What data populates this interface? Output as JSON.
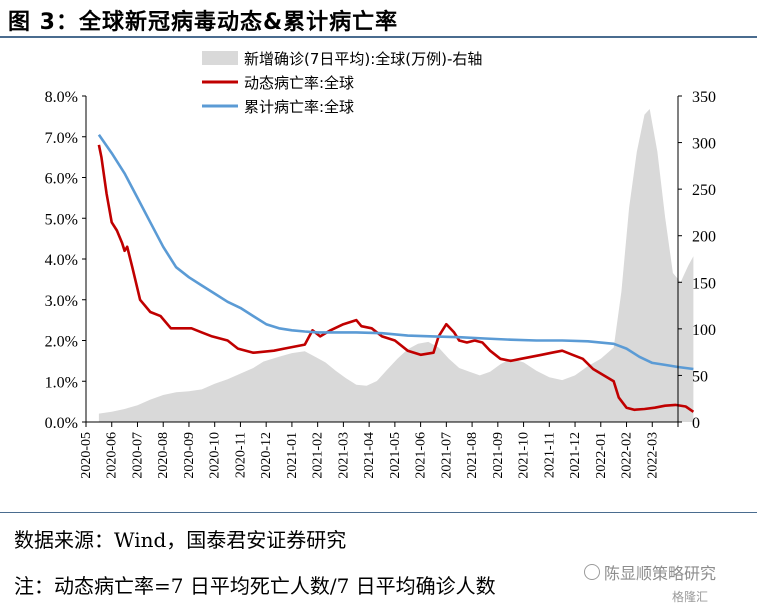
{
  "header": {
    "title": "图 3：全球新冠病毒动态&累计病亡率"
  },
  "chart_data": {
    "type": "line",
    "x_categories": [
      "2020-05",
      "2020-06",
      "2020-07",
      "2020-08",
      "2020-09",
      "2020-10",
      "2020-11",
      "2020-12",
      "2021-01",
      "2021-02",
      "2021-03",
      "2021-04",
      "2021-05",
      "2021-06",
      "2021-07",
      "2021-08",
      "2021-09",
      "2021-10",
      "2021-11",
      "2021-12",
      "2022-01",
      "2022-02",
      "2022-03"
    ],
    "y_left": {
      "min": 0,
      "max": 8,
      "ticks": [
        "0.0%",
        "1.0%",
        "2.0%",
        "3.0%",
        "4.0%",
        "5.0%",
        "6.0%",
        "7.0%",
        "8.0%"
      ]
    },
    "y_right": {
      "min": 0,
      "max": 350,
      "ticks": [
        "0",
        "50",
        "100",
        "150",
        "200",
        "250",
        "300",
        "350"
      ]
    },
    "legend_position": "top",
    "series": [
      {
        "name": "新增确诊(7日平均):全球(万例)-右轴",
        "kind": "area",
        "axis": "right",
        "color": "#d9d9d9",
        "points": [
          [
            0,
            9
          ],
          [
            0.5,
            11
          ],
          [
            1,
            14
          ],
          [
            1.5,
            18
          ],
          [
            2,
            24
          ],
          [
            2.5,
            29
          ],
          [
            3,
            32
          ],
          [
            3.5,
            33
          ],
          [
            4,
            35
          ],
          [
            4.5,
            41
          ],
          [
            5,
            46
          ],
          [
            5.5,
            52
          ],
          [
            6,
            58
          ],
          [
            6.4,
            65
          ],
          [
            7,
            70
          ],
          [
            7.5,
            74
          ],
          [
            8,
            76
          ],
          [
            8.4,
            70
          ],
          [
            8.8,
            64
          ],
          [
            9.2,
            55
          ],
          [
            9.6,
            47
          ],
          [
            10,
            40
          ],
          [
            10.4,
            39
          ],
          [
            10.8,
            44
          ],
          [
            11.2,
            56
          ],
          [
            11.6,
            68
          ],
          [
            12,
            78
          ],
          [
            12.4,
            84
          ],
          [
            12.8,
            86
          ],
          [
            13.2,
            80
          ],
          [
            13.6,
            68
          ],
          [
            14,
            58
          ],
          [
            14.4,
            54
          ],
          [
            14.8,
            50
          ],
          [
            15.2,
            54
          ],
          [
            15.6,
            62
          ],
          [
            16,
            68
          ],
          [
            16.5,
            64
          ],
          [
            17,
            55
          ],
          [
            17.5,
            48
          ],
          [
            18,
            45
          ],
          [
            18.5,
            50
          ],
          [
            19,
            60
          ],
          [
            19.5,
            68
          ],
          [
            20,
            80
          ],
          [
            20.3,
            140
          ],
          [
            20.6,
            230
          ],
          [
            20.9,
            290
          ],
          [
            21.2,
            330
          ],
          [
            21.4,
            336
          ],
          [
            21.7,
            290
          ],
          [
            22,
            220
          ],
          [
            22.3,
            160
          ],
          [
            22.6,
            150
          ],
          [
            22.9,
            168
          ],
          [
            23.1,
            178
          ]
        ]
      },
      {
        "name": "动态病亡率:全球",
        "kind": "line",
        "axis": "left",
        "color": "#c00000",
        "points": [
          [
            0,
            6.8
          ],
          [
            0.1,
            6.5
          ],
          [
            0.3,
            5.6
          ],
          [
            0.5,
            4.9
          ],
          [
            0.7,
            4.7
          ],
          [
            0.9,
            4.4
          ],
          [
            1,
            4.2
          ],
          [
            1.1,
            4.3
          ],
          [
            1.3,
            3.8
          ],
          [
            1.6,
            3.0
          ],
          [
            2,
            2.7
          ],
          [
            2.4,
            2.6
          ],
          [
            2.8,
            2.3
          ],
          [
            3.2,
            2.3
          ],
          [
            3.6,
            2.3
          ],
          [
            4,
            2.2
          ],
          [
            4.4,
            2.1
          ],
          [
            5,
            2.0
          ],
          [
            5.4,
            1.8
          ],
          [
            6,
            1.7
          ],
          [
            6.8,
            1.75
          ],
          [
            7.2,
            1.8
          ],
          [
            7.6,
            1.85
          ],
          [
            8,
            1.9
          ],
          [
            8.3,
            2.25
          ],
          [
            8.6,
            2.1
          ],
          [
            9,
            2.25
          ],
          [
            9.5,
            2.4
          ],
          [
            10,
            2.5
          ],
          [
            10.2,
            2.35
          ],
          [
            10.6,
            2.3
          ],
          [
            11,
            2.1
          ],
          [
            11.5,
            2.0
          ],
          [
            12,
            1.75
          ],
          [
            12.5,
            1.65
          ],
          [
            13,
            1.7
          ],
          [
            13.2,
            2.1
          ],
          [
            13.5,
            2.4
          ],
          [
            13.8,
            2.2
          ],
          [
            14,
            2.0
          ],
          [
            14.3,
            1.95
          ],
          [
            14.6,
            2.0
          ],
          [
            14.9,
            1.95
          ],
          [
            15.2,
            1.75
          ],
          [
            15.6,
            1.55
          ],
          [
            16,
            1.5
          ],
          [
            16.4,
            1.55
          ],
          [
            16.8,
            1.6
          ],
          [
            17.2,
            1.65
          ],
          [
            17.6,
            1.7
          ],
          [
            18,
            1.75
          ],
          [
            18.4,
            1.65
          ],
          [
            18.8,
            1.55
          ],
          [
            19.2,
            1.3
          ],
          [
            19.6,
            1.15
          ],
          [
            20,
            1.0
          ],
          [
            20.2,
            0.6
          ],
          [
            20.5,
            0.35
          ],
          [
            20.8,
            0.3
          ],
          [
            21.2,
            0.32
          ],
          [
            21.6,
            0.35
          ],
          [
            22,
            0.4
          ],
          [
            22.4,
            0.42
          ],
          [
            22.8,
            0.38
          ],
          [
            23.1,
            0.25
          ]
        ]
      },
      {
        "name": "累计病亡率:全球",
        "kind": "line",
        "axis": "left",
        "color": "#5b9bd5",
        "points": [
          [
            0,
            7.05
          ],
          [
            0.5,
            6.6
          ],
          [
            1,
            6.1
          ],
          [
            1.5,
            5.5
          ],
          [
            2,
            4.9
          ],
          [
            2.5,
            4.3
          ],
          [
            3,
            3.8
          ],
          [
            3.5,
            3.55
          ],
          [
            4,
            3.35
          ],
          [
            4.5,
            3.15
          ],
          [
            5,
            2.95
          ],
          [
            5.5,
            2.8
          ],
          [
            6,
            2.6
          ],
          [
            6.5,
            2.4
          ],
          [
            7,
            2.3
          ],
          [
            7.5,
            2.25
          ],
          [
            8,
            2.22
          ],
          [
            8.5,
            2.2
          ],
          [
            9,
            2.2
          ],
          [
            10,
            2.2
          ],
          [
            11,
            2.18
          ],
          [
            12,
            2.12
          ],
          [
            13,
            2.1
          ],
          [
            14,
            2.08
          ],
          [
            15,
            2.05
          ],
          [
            16,
            2.02
          ],
          [
            17,
            2.0
          ],
          [
            18,
            2.0
          ],
          [
            19,
            1.98
          ],
          [
            20,
            1.92
          ],
          [
            20.5,
            1.8
          ],
          [
            21,
            1.6
          ],
          [
            21.5,
            1.45
          ],
          [
            22,
            1.4
          ],
          [
            22.5,
            1.35
          ],
          [
            23.1,
            1.3
          ]
        ]
      }
    ]
  },
  "footer": {
    "source": "数据来源：Wind，国泰君安证券研究",
    "note": "注：动态病亡率=7 日平均死亡人数/7 日平均确诊人数",
    "watermark": "陈显顺策略研究",
    "sublogo": "格隆汇"
  }
}
